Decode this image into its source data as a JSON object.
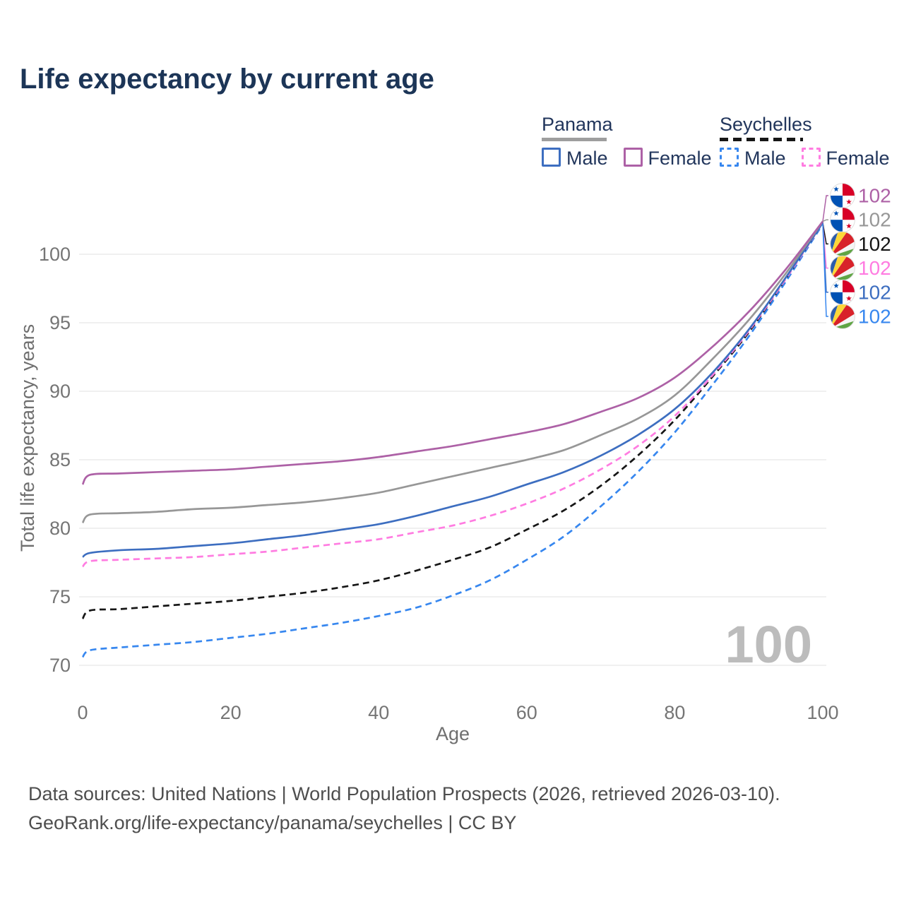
{
  "header": {
    "title": "Life expectancy by current age"
  },
  "legend": {
    "panama": {
      "title": "Panama",
      "male_label": "Male",
      "female_label": "Female",
      "male_color": "#3d6ec0",
      "female_color": "#ad61a6",
      "underline_color": "#9e9e9e",
      "underline_style": "solid"
    },
    "seychelles": {
      "title": "Seychelles",
      "male_label": "Male",
      "female_label": "Female",
      "male_color": "#3787ef",
      "female_color": "#ff7ce1",
      "underline_color": "#161616",
      "underline_style": "dashed"
    }
  },
  "chart_data": {
    "type": "line",
    "title": "Life expectancy by current age",
    "xlabel": "Age",
    "ylabel": "Total life expectancy, years",
    "xticks": [
      0,
      20,
      40,
      60,
      80,
      100
    ],
    "yticks": [
      70,
      75,
      80,
      85,
      90,
      95,
      100
    ],
    "xlim": [
      0,
      100
    ],
    "ylim": [
      69.5,
      103
    ],
    "grid": "horizontal",
    "watermark": "100",
    "x": [
      0,
      1,
      5,
      10,
      15,
      20,
      25,
      30,
      35,
      40,
      45,
      50,
      55,
      60,
      65,
      70,
      75,
      80,
      85,
      90,
      95,
      100
    ],
    "series": [
      {
        "id": "panama_female",
        "name": "Panama Female",
        "country": "Panama",
        "sex": "Female",
        "color": "#ad61a6",
        "dashed": false,
        "values": [
          83.2,
          83.9,
          84.0,
          84.1,
          84.2,
          84.3,
          84.5,
          84.7,
          84.9,
          85.2,
          85.6,
          86.0,
          86.5,
          87.0,
          87.6,
          88.5,
          89.5,
          91.0,
          93.2,
          95.8,
          98.9,
          102.4
        ]
      },
      {
        "id": "panama_all",
        "name": "Panama Both sexes",
        "country": "Panama",
        "sex": "All",
        "color": "#979797",
        "dashed": false,
        "values": [
          80.4,
          81.0,
          81.1,
          81.2,
          81.4,
          81.5,
          81.7,
          81.9,
          82.2,
          82.6,
          83.2,
          83.8,
          84.4,
          85.0,
          85.7,
          86.8,
          88.0,
          89.7,
          92.3,
          95.2,
          98.6,
          102.4
        ]
      },
      {
        "id": "panama_male",
        "name": "Panama Male",
        "country": "Panama",
        "sex": "Male",
        "color": "#3d6ec0",
        "dashed": false,
        "values": [
          77.9,
          78.2,
          78.4,
          78.5,
          78.7,
          78.9,
          79.2,
          79.5,
          79.9,
          80.3,
          80.9,
          81.6,
          82.3,
          83.2,
          84.1,
          85.3,
          86.8,
          88.7,
          91.3,
          94.5,
          98.3,
          102.3
        ]
      },
      {
        "id": "seychelles_female",
        "name": "Seychelles Female",
        "country": "Seychelles",
        "sex": "Female",
        "color": "#ff7ce1",
        "dashed": true,
        "values": [
          77.2,
          77.6,
          77.7,
          77.8,
          77.9,
          78.1,
          78.3,
          78.6,
          78.9,
          79.2,
          79.7,
          80.2,
          80.9,
          81.8,
          82.9,
          84.3,
          86.0,
          88.2,
          91.1,
          94.4,
          98.2,
          102.3
        ]
      },
      {
        "id": "seychelles_all",
        "name": "Seychelles Both sexes",
        "country": "Seychelles",
        "sex": "All",
        "color": "#161616",
        "dashed": true,
        "values": [
          73.4,
          74.0,
          74.1,
          74.3,
          74.5,
          74.7,
          75.0,
          75.3,
          75.7,
          76.2,
          76.9,
          77.7,
          78.6,
          79.9,
          81.3,
          83.1,
          85.3,
          87.9,
          91.0,
          94.3,
          98.2,
          102.3
        ]
      },
      {
        "id": "seychelles_male",
        "name": "Seychelles Male",
        "country": "Seychelles",
        "sex": "Male",
        "color": "#3787ef",
        "dashed": true,
        "values": [
          70.6,
          71.1,
          71.3,
          71.5,
          71.7,
          72.0,
          72.3,
          72.7,
          73.1,
          73.6,
          74.2,
          75.1,
          76.2,
          77.7,
          79.4,
          81.6,
          84.1,
          87.0,
          90.4,
          94.0,
          98.0,
          102.2
        ]
      }
    ],
    "end_labels": [
      {
        "series": "panama_female",
        "flag": "panama",
        "value": "102"
      },
      {
        "series": "panama_all",
        "flag": "panama",
        "value": "102"
      },
      {
        "series": "seychelles_all",
        "flag": "seychelles",
        "value": "102"
      },
      {
        "series": "seychelles_female",
        "flag": "seychelles",
        "value": "102"
      },
      {
        "series": "panama_male",
        "flag": "panama",
        "value": "102"
      },
      {
        "series": "seychelles_male",
        "flag": "seychelles",
        "value": "102"
      }
    ],
    "legend_position": "top-right"
  },
  "footer": {
    "line1": "Data sources: United Nations | World Population Prospects (2026, retrieved 2026-03-10).",
    "line2": "GeoRank.org/life-expectancy/panama/seychelles | CC BY"
  }
}
